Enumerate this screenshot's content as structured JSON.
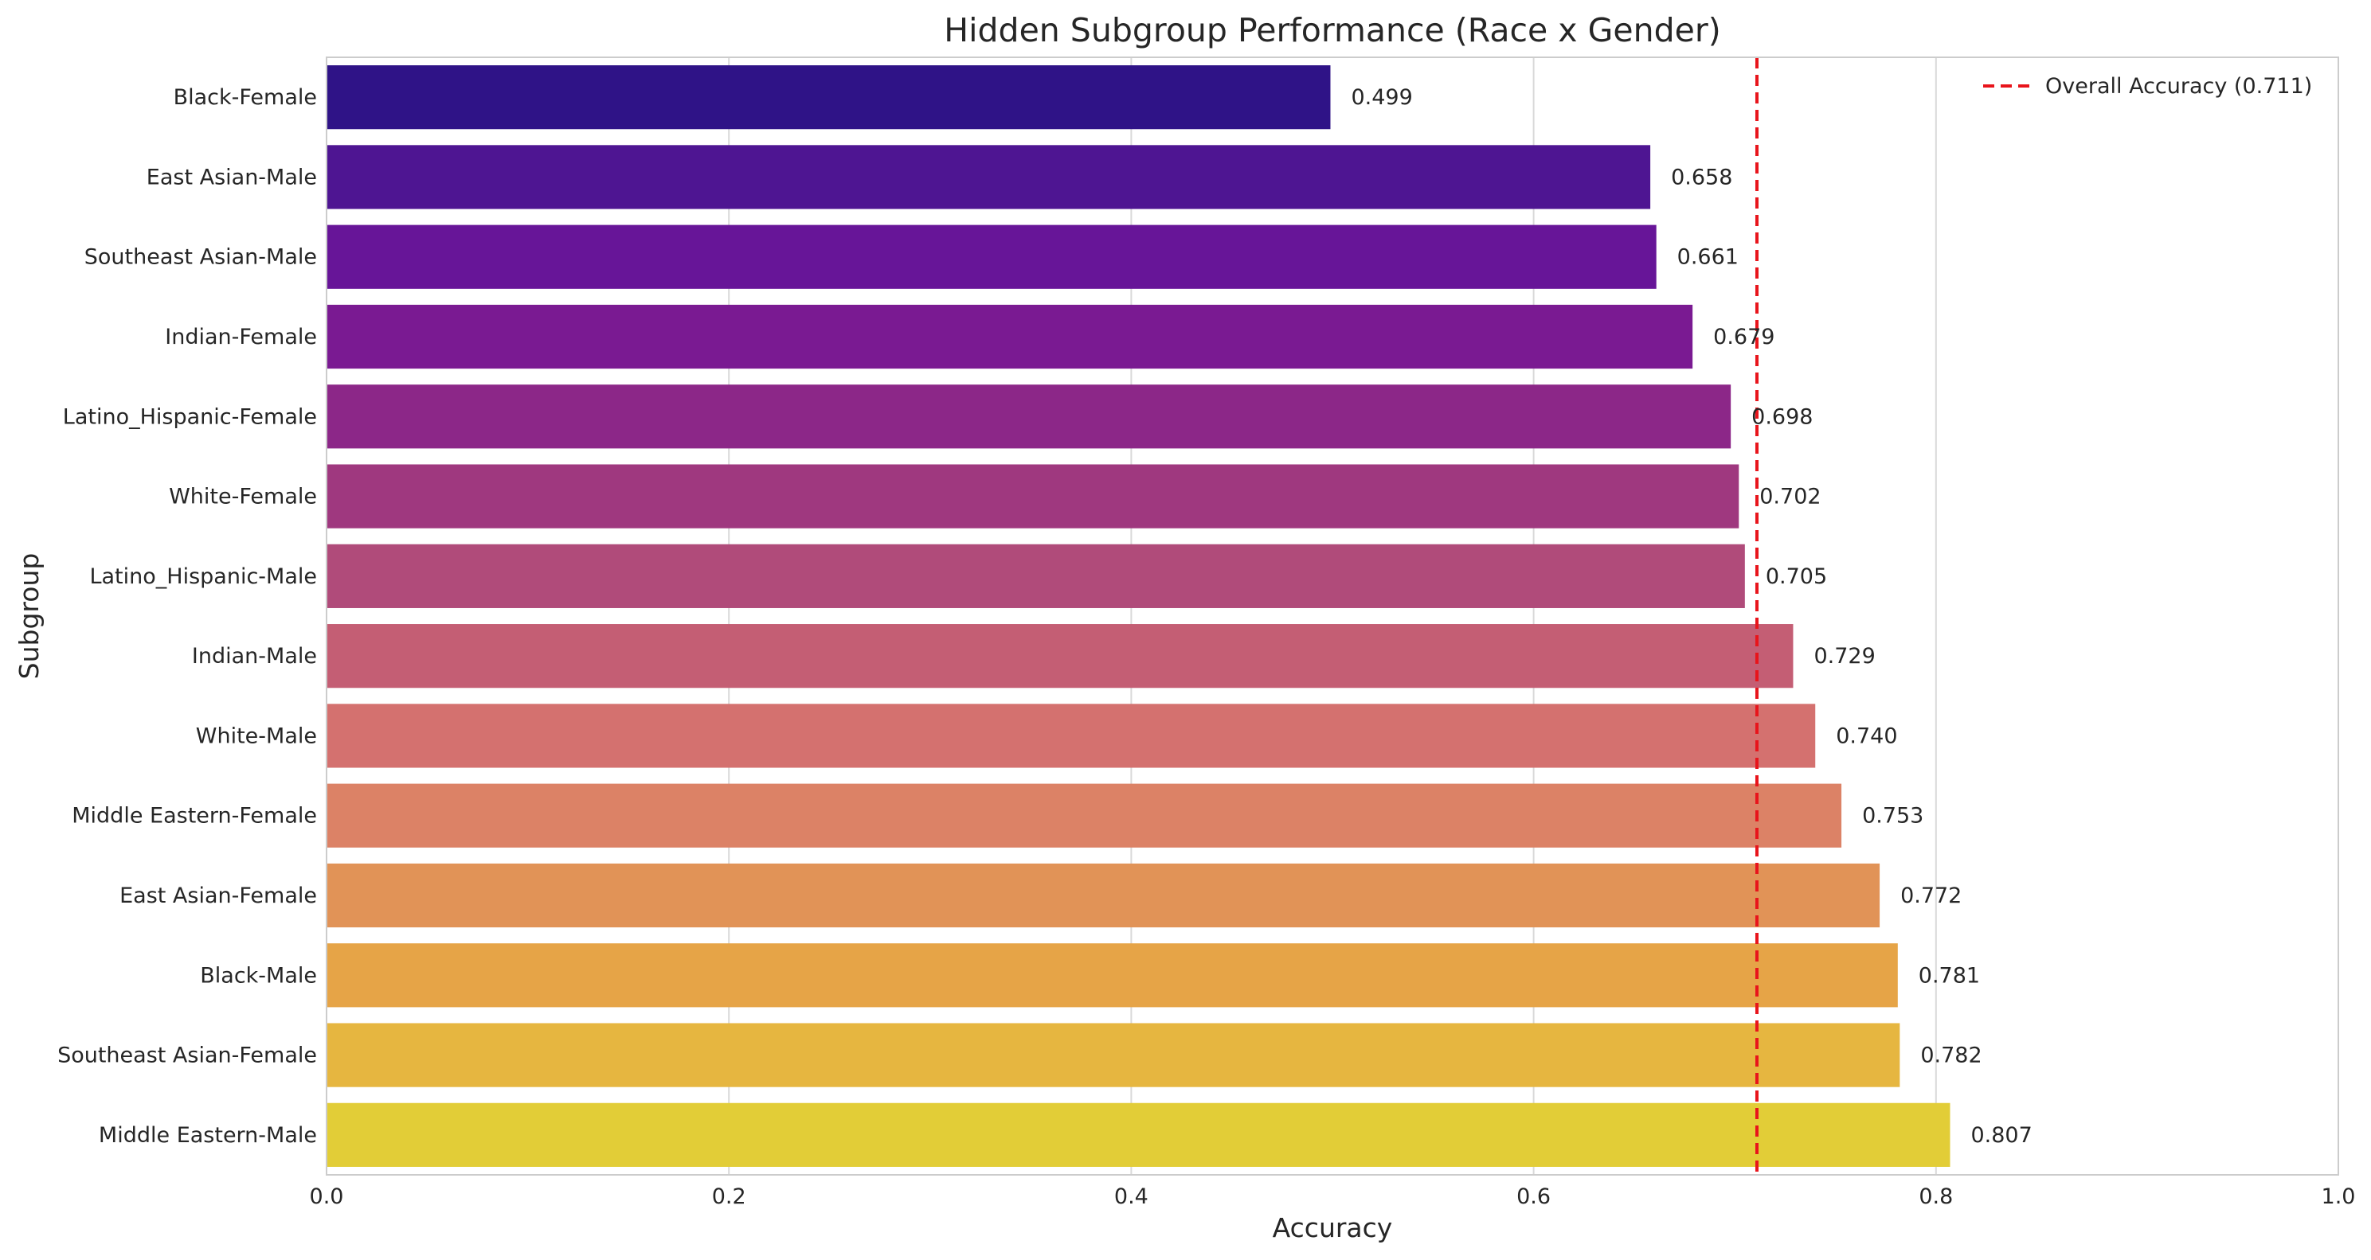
{
  "chart_data": {
    "type": "bar",
    "orientation": "horizontal",
    "title": "Hidden Subgroup Performance (Race x Gender)",
    "xlabel": "Accuracy",
    "ylabel": "Subgroup",
    "xlim": [
      0.0,
      1.0
    ],
    "x_ticks": [
      0.0,
      0.2,
      0.4,
      0.6,
      0.8,
      1.0
    ],
    "x_tick_labels": [
      "0.0",
      "0.2",
      "0.4",
      "0.6",
      "0.8",
      "1.0"
    ],
    "grid": true,
    "categories": [
      "Black-Female",
      "East Asian-Male",
      "Southeast Asian-Male",
      "Indian-Female",
      "Latino_Hispanic-Female",
      "White-Female",
      "Latino_Hispanic-Male",
      "Indian-Male",
      "White-Male",
      "Middle Eastern-Female",
      "East Asian-Female",
      "Black-Male",
      "Southeast Asian-Female",
      "Middle Eastern-Male"
    ],
    "values": [
      0.499,
      0.658,
      0.661,
      0.679,
      0.698,
      0.702,
      0.705,
      0.729,
      0.74,
      0.753,
      0.772,
      0.781,
      0.782,
      0.807
    ],
    "value_labels": [
      "0.499",
      "0.658",
      "0.661",
      "0.679",
      "0.698",
      "0.702",
      "0.705",
      "0.729",
      "0.740",
      "0.753",
      "0.772",
      "0.781",
      "0.782",
      "0.807"
    ],
    "colors": [
      "#2f1387",
      "#4e1592",
      "#671598",
      "#7a1a92",
      "#8c2788",
      "#9f387f",
      "#b04b7a",
      "#c45e74",
      "#d4716f",
      "#dc8266",
      "#e19357",
      "#e6a447",
      "#e6b640",
      "#e2cd37"
    ],
    "reference_line": {
      "value": 0.711,
      "label": "Overall Accuracy (0.711)",
      "color": "#e8141b",
      "style": "dashed"
    },
    "legend_position": "top-right"
  }
}
